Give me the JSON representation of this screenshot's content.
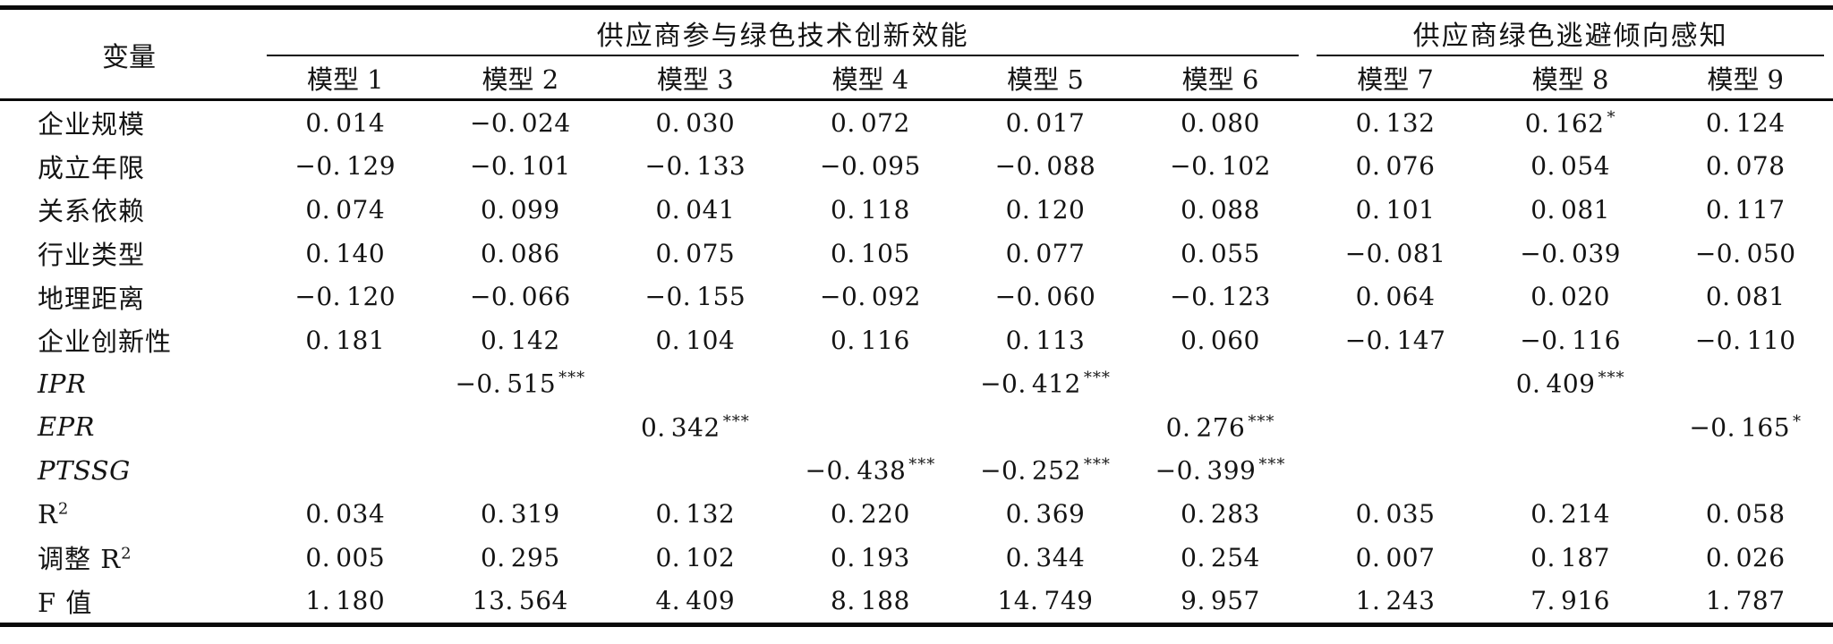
{
  "page": {
    "background_color": "#ffffff",
    "ink_color": "#141414"
  },
  "table": {
    "variable_header": "变量",
    "group_headers": [
      {
        "label": "供应商参与绿色技术创新效能",
        "span": 6
      },
      {
        "label": "供应商绿色逃避倾向感知",
        "span": 3
      }
    ],
    "model_headers": [
      "模型 1",
      "模型 2",
      "模型 3",
      "模型 4",
      "模型 5",
      "模型 6",
      "模型 7",
      "模型 8",
      "模型 9"
    ],
    "rows": [
      {
        "label": "企业规模",
        "italic": false,
        "values": [
          {
            "v": "0.014"
          },
          {
            "v": "−0.024"
          },
          {
            "v": "0.030"
          },
          {
            "v": "0.072"
          },
          {
            "v": "0.017"
          },
          {
            "v": "0.080"
          },
          {
            "v": "0.132"
          },
          {
            "v": "0.162",
            "sig": "*"
          },
          {
            "v": "0.124"
          }
        ]
      },
      {
        "label": "成立年限",
        "italic": false,
        "values": [
          {
            "v": "−0.129"
          },
          {
            "v": "−0.101"
          },
          {
            "v": "−0.133"
          },
          {
            "v": "−0.095"
          },
          {
            "v": "−0.088"
          },
          {
            "v": "−0.102"
          },
          {
            "v": "0.076"
          },
          {
            "v": "0.054"
          },
          {
            "v": "0.078"
          }
        ]
      },
      {
        "label": "关系依赖",
        "italic": false,
        "values": [
          {
            "v": "0.074"
          },
          {
            "v": "0.099"
          },
          {
            "v": "0.041"
          },
          {
            "v": "0.118"
          },
          {
            "v": "0.120"
          },
          {
            "v": "0.088"
          },
          {
            "v": "0.101"
          },
          {
            "v": "0.081"
          },
          {
            "v": "0.117"
          }
        ]
      },
      {
        "label": "行业类型",
        "italic": false,
        "values": [
          {
            "v": "0.140"
          },
          {
            "v": "0.086"
          },
          {
            "v": "0.075"
          },
          {
            "v": "0.105"
          },
          {
            "v": "0.077"
          },
          {
            "v": "0.055"
          },
          {
            "v": "−0.081"
          },
          {
            "v": "−0.039"
          },
          {
            "v": "−0.050"
          }
        ]
      },
      {
        "label": "地理距离",
        "italic": false,
        "values": [
          {
            "v": "−0.120"
          },
          {
            "v": "−0.066"
          },
          {
            "v": "−0.155"
          },
          {
            "v": "−0.092"
          },
          {
            "v": "−0.060"
          },
          {
            "v": "−0.123"
          },
          {
            "v": "0.064"
          },
          {
            "v": "0.020"
          },
          {
            "v": "0.081"
          }
        ]
      },
      {
        "label": "企业创新性",
        "italic": false,
        "values": [
          {
            "v": "0.181"
          },
          {
            "v": "0.142"
          },
          {
            "v": "0.104"
          },
          {
            "v": "0.116"
          },
          {
            "v": "0.113"
          },
          {
            "v": "0.060"
          },
          {
            "v": "−0.147"
          },
          {
            "v": "−0.116"
          },
          {
            "v": "−0.110"
          }
        ]
      },
      {
        "label": "IPR",
        "italic": true,
        "values": [
          {
            "v": ""
          },
          {
            "v": "−0.515",
            "sig": "***"
          },
          {
            "v": ""
          },
          {
            "v": ""
          },
          {
            "v": "−0.412",
            "sig": "***"
          },
          {
            "v": ""
          },
          {
            "v": ""
          },
          {
            "v": "0.409",
            "sig": "***"
          },
          {
            "v": ""
          }
        ]
      },
      {
        "label": "EPR",
        "italic": true,
        "values": [
          {
            "v": ""
          },
          {
            "v": ""
          },
          {
            "v": "0.342",
            "sig": "***"
          },
          {
            "v": ""
          },
          {
            "v": ""
          },
          {
            "v": "0.276",
            "sig": "***"
          },
          {
            "v": ""
          },
          {
            "v": ""
          },
          {
            "v": "−0.165",
            "sig": "*"
          }
        ]
      },
      {
        "label": "PTSSG",
        "italic": true,
        "values": [
          {
            "v": ""
          },
          {
            "v": ""
          },
          {
            "v": ""
          },
          {
            "v": "−0.438",
            "sig": "***"
          },
          {
            "v": "−0.252",
            "sig": "***"
          },
          {
            "v": "−0.399",
            "sig": "***"
          },
          {
            "v": ""
          },
          {
            "v": ""
          },
          {
            "v": ""
          }
        ]
      },
      {
        "label": "R",
        "label_sup": "2",
        "italic": false,
        "values": [
          {
            "v": "0.034"
          },
          {
            "v": "0.319"
          },
          {
            "v": "0.132"
          },
          {
            "v": "0.220"
          },
          {
            "v": "0.369"
          },
          {
            "v": "0.283"
          },
          {
            "v": "0.035"
          },
          {
            "v": "0.214"
          },
          {
            "v": "0.058"
          }
        ]
      },
      {
        "label": "调整 R",
        "label_sup": "2",
        "italic": false,
        "values": [
          {
            "v": "0.005"
          },
          {
            "v": "0.295"
          },
          {
            "v": "0.102"
          },
          {
            "v": "0.193"
          },
          {
            "v": "0.344"
          },
          {
            "v": "0.254"
          },
          {
            "v": "0.007"
          },
          {
            "v": "0.187"
          },
          {
            "v": "0.026"
          }
        ]
      },
      {
        "label": "F 值",
        "italic": false,
        "values": [
          {
            "v": "1.180"
          },
          {
            "v": "13.564"
          },
          {
            "v": "4.409"
          },
          {
            "v": "8.188"
          },
          {
            "v": "14.749"
          },
          {
            "v": "9.957"
          },
          {
            "v": "1.243"
          },
          {
            "v": "7.916"
          },
          {
            "v": "1.787"
          }
        ]
      }
    ]
  }
}
